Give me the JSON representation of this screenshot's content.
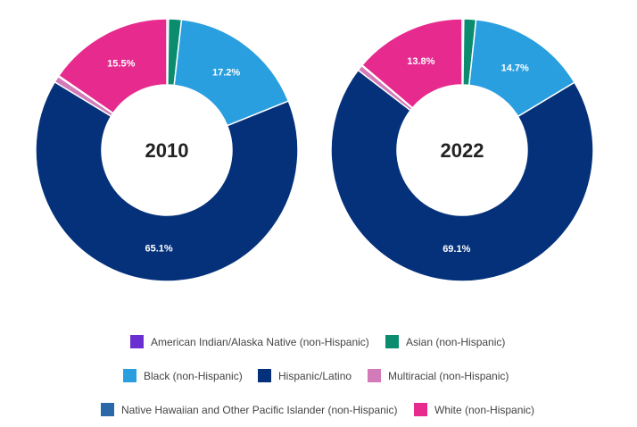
{
  "chart_data": [
    {
      "type": "pie",
      "center_label": "2010",
      "slices": [
        {
          "category": "American Indian/Alaska Native (non-Hispanic)",
          "value": 0.2,
          "label": ""
        },
        {
          "category": "Asian (non-Hispanic)",
          "value": 1.6,
          "label": ""
        },
        {
          "category": "Black (non-Hispanic)",
          "value": 17.2,
          "label": "17.2%"
        },
        {
          "category": "Hispanic/Latino",
          "value": 65.1,
          "label": "65.1%"
        },
        {
          "category": "Multiracial (non-Hispanic)",
          "value": 0.8,
          "label": ""
        },
        {
          "category": "Native Hawaiian and Other Pacific Islander (non-Hispanic)",
          "value": 0.1,
          "label": ""
        },
        {
          "category": "White (non-Hispanic)",
          "value": 15.5,
          "label": "15.5%"
        }
      ]
    },
    {
      "type": "pie",
      "center_label": "2022",
      "slices": [
        {
          "category": "American Indian/Alaska Native (non-Hispanic)",
          "value": 0.2,
          "label": ""
        },
        {
          "category": "Asian (non-Hispanic)",
          "value": 1.5,
          "label": ""
        },
        {
          "category": "Black (non-Hispanic)",
          "value": 14.7,
          "label": "14.7%"
        },
        {
          "category": "Hispanic/Latino",
          "value": 69.1,
          "label": "69.1%"
        },
        {
          "category": "Multiracial (non-Hispanic)",
          "value": 0.7,
          "label": ""
        },
        {
          "category": "Native Hawaiian and Other Pacific Islander (non-Hispanic)",
          "value": 0.1,
          "label": ""
        },
        {
          "category": "White (non-Hispanic)",
          "value": 13.8,
          "label": "13.8%"
        }
      ]
    }
  ],
  "legend": {
    "placement": "bottom",
    "items": [
      {
        "label": "American Indian/Alaska Native (non-Hispanic)",
        "color": "#6a2fd1"
      },
      {
        "label": "Asian (non-Hispanic)",
        "color": "#0b8c6f"
      },
      {
        "label": "Black (non-Hispanic)",
        "color": "#2a9fdf"
      },
      {
        "label": "Hispanic/Latino",
        "color": "#04317a"
      },
      {
        "label": "Multiracial (non-Hispanic)",
        "color": "#d27bb8"
      },
      {
        "label": "Native Hawaiian and Other Pacific Islander (non-Hispanic)",
        "color": "#2a68a8"
      },
      {
        "label": "White (non-Hispanic)",
        "color": "#e62a8e"
      }
    ]
  }
}
